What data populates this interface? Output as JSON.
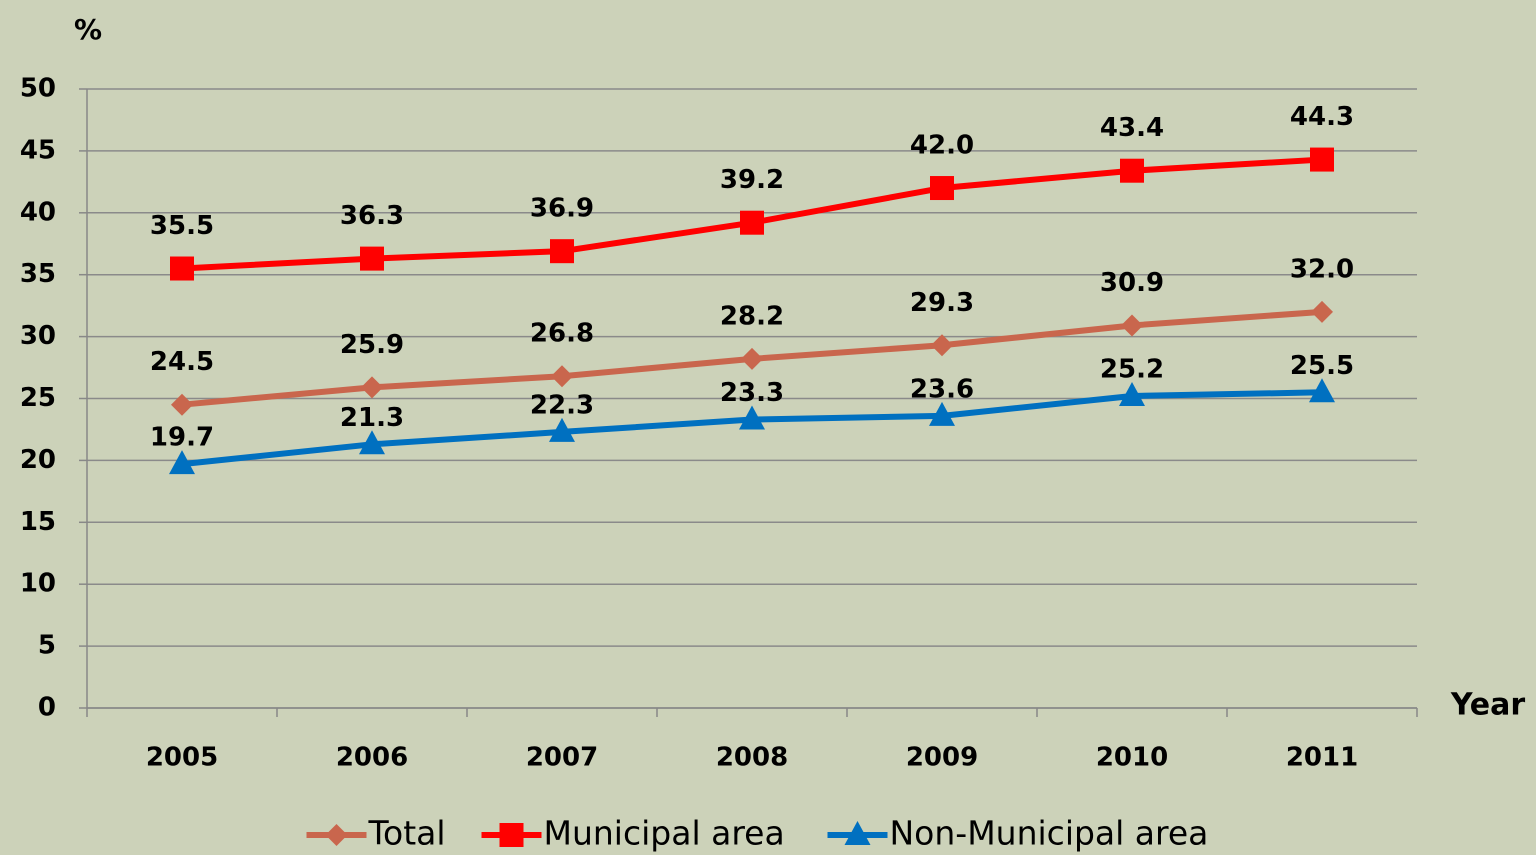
{
  "chart_data": {
    "type": "line",
    "y_label": "%",
    "x_label": "Year",
    "categories": [
      "2005",
      "2006",
      "2007",
      "2008",
      "2009",
      "2010",
      "2011"
    ],
    "series": [
      {
        "name": "Total",
        "color": "#c9664d",
        "marker": "diamond",
        "values": [
          24.5,
          25.9,
          26.8,
          28.2,
          29.3,
          30.9,
          32.0
        ],
        "value_labels": [
          "24.5",
          "25.9",
          "26.8",
          "28.2",
          "29.3",
          "30.9",
          "32.0"
        ]
      },
      {
        "name": "Municipal area",
        "color": "#ff0000",
        "marker": "square",
        "values": [
          35.5,
          36.3,
          36.9,
          39.2,
          42.0,
          43.4,
          44.3
        ],
        "value_labels": [
          "35.5",
          "36.3",
          "36.9",
          "39.2",
          "42.0",
          "43.4",
          "44.3"
        ]
      },
      {
        "name": "Non-Municipal area",
        "color": "#0070c0",
        "marker": "triangle",
        "values": [
          19.7,
          21.3,
          22.3,
          23.3,
          23.6,
          25.2,
          25.5
        ],
        "value_labels": [
          "19.7",
          "21.3",
          "22.3",
          "23.3",
          "23.6",
          "25.2",
          "25.5"
        ]
      }
    ],
    "ylim": [
      0,
      50
    ],
    "yticks": [
      0,
      5,
      10,
      15,
      20,
      25,
      30,
      35,
      40,
      45,
      50
    ],
    "grid": true,
    "legend": "bottom"
  }
}
